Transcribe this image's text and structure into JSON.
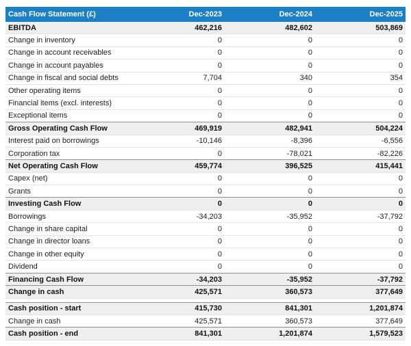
{
  "table": {
    "title": "Cash Flow Statement (£)",
    "columns": [
      "Dec-2023",
      "Dec-2024",
      "Dec-2025"
    ],
    "rows": [
      {
        "label": "EBITDA",
        "values": [
          "462,216",
          "482,602",
          "503,869"
        ],
        "style": "summary",
        "no_top_border": true
      },
      {
        "label": "Change in inventory",
        "values": [
          "0",
          "0",
          "0"
        ],
        "style": "normal"
      },
      {
        "label": "Change in account receivables",
        "values": [
          "0",
          "0",
          "0"
        ],
        "style": "normal"
      },
      {
        "label": "Change in account payables",
        "values": [
          "0",
          "0",
          "0"
        ],
        "style": "normal"
      },
      {
        "label": "Change in fiscal and social debts",
        "values": [
          "7,704",
          "340",
          "354"
        ],
        "style": "normal"
      },
      {
        "label": "Other operating items",
        "values": [
          "0",
          "0",
          "0"
        ],
        "style": "normal"
      },
      {
        "label": "Financial items (excl. interests)",
        "values": [
          "0",
          "0",
          "0"
        ],
        "style": "normal"
      },
      {
        "label": "Exceptional items",
        "values": [
          "0",
          "0",
          "0"
        ],
        "style": "normal"
      },
      {
        "label": "Gross Operating Cash Flow",
        "values": [
          "469,919",
          "482,941",
          "504,224"
        ],
        "style": "summary"
      },
      {
        "label": "Interest paid on borrowings",
        "values": [
          "-10,146",
          "-8,396",
          "-6,556"
        ],
        "style": "normal"
      },
      {
        "label": "Corporation tax",
        "values": [
          "0",
          "-78,021",
          "-82,226"
        ],
        "style": "normal"
      },
      {
        "label": "Net Operating Cash Flow",
        "values": [
          "459,774",
          "396,525",
          "415,441"
        ],
        "style": "summary"
      },
      {
        "label": "Capex (net)",
        "values": [
          "0",
          "0",
          "0"
        ],
        "style": "normal"
      },
      {
        "label": "Grants",
        "values": [
          "0",
          "0",
          "0"
        ],
        "style": "normal"
      },
      {
        "label": "Investing Cash Flow",
        "values": [
          "0",
          "0",
          "0"
        ],
        "style": "summary"
      },
      {
        "label": "Borrowings",
        "values": [
          "-34,203",
          "-35,952",
          "-37,792"
        ],
        "style": "normal"
      },
      {
        "label": "Change in share capital",
        "values": [
          "0",
          "0",
          "0"
        ],
        "style": "normal"
      },
      {
        "label": "Change in director loans",
        "values": [
          "0",
          "0",
          "0"
        ],
        "style": "normal"
      },
      {
        "label": "Change in other equity",
        "values": [
          "0",
          "0",
          "0"
        ],
        "style": "normal"
      },
      {
        "label": "Dividend",
        "values": [
          "0",
          "0",
          "0"
        ],
        "style": "normal"
      },
      {
        "label": "Financing Cash Flow",
        "values": [
          "-34,203",
          "-35,952",
          "-37,792"
        ],
        "style": "summary"
      },
      {
        "label": "Change in cash",
        "values": [
          "425,571",
          "360,573",
          "377,649"
        ],
        "style": "summary"
      },
      {
        "label": "Cash position - start",
        "values": [
          "415,730",
          "841,301",
          "1,201,874"
        ],
        "style": "summary",
        "gap_before": true
      },
      {
        "label": "Change in cash",
        "values": [
          "425,571",
          "360,573",
          "377,649"
        ],
        "style": "normal"
      },
      {
        "label": "Cash position - end",
        "values": [
          "841,301",
          "1,201,874",
          "1,579,523"
        ],
        "style": "summary"
      }
    ]
  },
  "colors": {
    "header_bg": "#1b80c4",
    "header_text": "#ffffff",
    "summary_bg": "#efefef",
    "summary_border": "#8f8f8f",
    "row_border": "#e4e4e4",
    "text": "#1c1c1c"
  },
  "chart_data": {
    "type": "table",
    "title": "Cash Flow Statement (£)",
    "columns": [
      "Dec-2023",
      "Dec-2024",
      "Dec-2025"
    ],
    "rows": [
      {
        "label": "EBITDA",
        "values": [
          462216,
          482602,
          503869
        ]
      },
      {
        "label": "Change in inventory",
        "values": [
          0,
          0,
          0
        ]
      },
      {
        "label": "Change in account receivables",
        "values": [
          0,
          0,
          0
        ]
      },
      {
        "label": "Change in account payables",
        "values": [
          0,
          0,
          0
        ]
      },
      {
        "label": "Change in fiscal and social debts",
        "values": [
          7704,
          340,
          354
        ]
      },
      {
        "label": "Other operating items",
        "values": [
          0,
          0,
          0
        ]
      },
      {
        "label": "Financial items (excl. interests)",
        "values": [
          0,
          0,
          0
        ]
      },
      {
        "label": "Exceptional items",
        "values": [
          0,
          0,
          0
        ]
      },
      {
        "label": "Gross Operating Cash Flow",
        "values": [
          469919,
          482941,
          504224
        ]
      },
      {
        "label": "Interest paid on borrowings",
        "values": [
          -10146,
          -8396,
          -6556
        ]
      },
      {
        "label": "Corporation tax",
        "values": [
          0,
          -78021,
          -82226
        ]
      },
      {
        "label": "Net Operating Cash Flow",
        "values": [
          459774,
          396525,
          415441
        ]
      },
      {
        "label": "Capex (net)",
        "values": [
          0,
          0,
          0
        ]
      },
      {
        "label": "Grants",
        "values": [
          0,
          0,
          0
        ]
      },
      {
        "label": "Investing Cash Flow",
        "values": [
          0,
          0,
          0
        ]
      },
      {
        "label": "Borrowings",
        "values": [
          -34203,
          -35952,
          -37792
        ]
      },
      {
        "label": "Change in share capital",
        "values": [
          0,
          0,
          0
        ]
      },
      {
        "label": "Change in director loans",
        "values": [
          0,
          0,
          0
        ]
      },
      {
        "label": "Change in other equity",
        "values": [
          0,
          0,
          0
        ]
      },
      {
        "label": "Dividend",
        "values": [
          0,
          0,
          0
        ]
      },
      {
        "label": "Financing Cash Flow",
        "values": [
          -34203,
          -35952,
          -37792
        ]
      },
      {
        "label": "Change in cash",
        "values": [
          425571,
          360573,
          377649
        ]
      },
      {
        "label": "Cash position - start",
        "values": [
          415730,
          841301,
          1201874
        ]
      },
      {
        "label": "Change in cash",
        "values": [
          425571,
          360573,
          377649
        ]
      },
      {
        "label": "Cash position - end",
        "values": [
          841301,
          1201874,
          1579523
        ]
      }
    ]
  }
}
